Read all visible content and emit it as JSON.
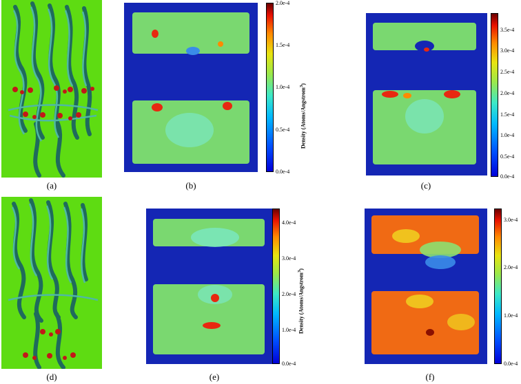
{
  "captions": {
    "a": "(a)",
    "b": "(b)",
    "c": "(c)",
    "d": "(d)",
    "e": "(e)",
    "f": "(f)"
  },
  "colorbars": {
    "b": {
      "label": "Density (Atoms/Angstrom",
      "sup": "3",
      "label_end": ")",
      "ticks": [
        "2.0e-4",
        "1.5e-4",
        "1.0e-4",
        "0.5e-4",
        "0.0e-4"
      ]
    },
    "c": {
      "label": "Density (Atoms/Angstrom",
      "sup": "3",
      "label_end": ")",
      "ticks": [
        "3.5e-4",
        "3.0e-4",
        "2.5e-4",
        "2.0e-4",
        "1.5e-4",
        "1.0e-4",
        "0.5e-4",
        "0.0e-4"
      ]
    },
    "e": {
      "label": "Density (Atoms/Angstrom",
      "sup": "3",
      "label_end": ")",
      "ticks": [
        "4.0e-4",
        "3.0e-4",
        "2.0e-4",
        "1.0e-4",
        "0.0e-4"
      ]
    },
    "f": {
      "label": "Density (Atoms/Angstrom",
      "sup": "3",
      "label_end": ")",
      "ticks": [
        "3.0e-4",
        "2.0e-4",
        "1.0e-4",
        "0.0e-4"
      ]
    }
  },
  "colors": {
    "background_green": "#5edc12",
    "heatmap_blue": "#1426b4",
    "slab_green": "#6fd88a",
    "protein_teal": "#2a8c7a",
    "lipid_red": "#c21818"
  }
}
